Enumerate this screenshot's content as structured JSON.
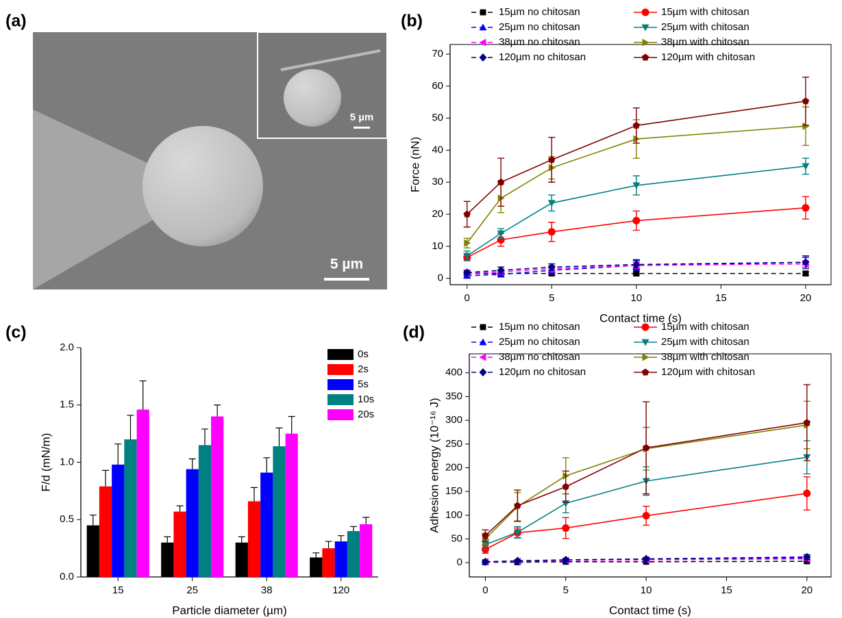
{
  "chart_data": [
    {
      "type": "image",
      "panel_label": "(a)",
      "scale_bar_label": "5 µm",
      "inset_scale_bar_label": "5 µm"
    },
    {
      "type": "line",
      "panel_label": "(b)",
      "x_label": "Contact time (s)",
      "y_label": "Force (nN)",
      "x": [
        0,
        2,
        5,
        10,
        20
      ],
      "xlim": [
        -1,
        21.5
      ],
      "xticks": [
        0,
        5,
        10,
        15,
        20
      ],
      "ylim": [
        -2,
        73
      ],
      "yticks": [
        0,
        10,
        20,
        30,
        40,
        50,
        60,
        70
      ],
      "legend": "top",
      "series": [
        {
          "name": "15µm no chitosan",
          "color": "#000000",
          "marker": "square",
          "linestyle": "dashed",
          "values": [
            1.5,
            1.5,
            1.5,
            1.5,
            1.5
          ],
          "errors": [
            0.5,
            0.5,
            0.5,
            0.5,
            0.5
          ]
        },
        {
          "name": "25µm no chitosan",
          "color": "#0000ff",
          "marker": "triangle-up",
          "linestyle": "dashed",
          "values": [
            0.8,
            1.2,
            2.5,
            4,
            5
          ],
          "errors": [
            0.5,
            0.7,
            1,
            1.5,
            1.5
          ]
        },
        {
          "name": "38µm no chitosan",
          "color": "#ff00ff",
          "marker": "triangle-left",
          "linestyle": "dashed",
          "values": [
            1.5,
            2,
            3,
            4,
            4.5
          ],
          "errors": [
            0.5,
            0.7,
            1,
            1,
            1
          ]
        },
        {
          "name": "120µm no chitosan",
          "color": "#000080",
          "marker": "diamond",
          "linestyle": "dashed",
          "values": [
            1.8,
            2.5,
            3.5,
            4.3,
            5
          ],
          "errors": [
            0.7,
            1,
            1,
            1.5,
            2
          ]
        },
        {
          "name": "15µm with chitosan",
          "color": "#ff0000",
          "marker": "circle",
          "linestyle": "solid",
          "values": [
            6.5,
            12,
            14.5,
            18,
            22
          ],
          "errors": [
            1,
            2,
            3,
            3,
            3.5
          ]
        },
        {
          "name": "25µm with chitosan",
          "color": "#008080",
          "marker": "triangle-down",
          "linestyle": "solid",
          "values": [
            7,
            14,
            23.5,
            29,
            35
          ],
          "errors": [
            1.5,
            1.5,
            2.5,
            3,
            2.5
          ]
        },
        {
          "name": "38µm with chitosan",
          "color": "#808000",
          "marker": "triangle-right",
          "linestyle": "solid",
          "values": [
            11,
            25,
            34.5,
            43.5,
            47.5
          ],
          "errors": [
            1.5,
            4.5,
            3.5,
            6,
            6
          ]
        },
        {
          "name": "120µm with chitosan",
          "color": "#800000",
          "marker": "pentagon",
          "linestyle": "solid",
          "values": [
            20,
            30,
            37,
            47.7,
            55.3
          ],
          "errors": [
            4,
            7.5,
            7,
            5.5,
            7.5
          ]
        }
      ]
    },
    {
      "type": "bar",
      "panel_label": "(c)",
      "x_label": "Particle diameter (µm)",
      "y_label": "F/d (mN/m)",
      "categories": [
        "15",
        "25",
        "38",
        "120"
      ],
      "ylim": [
        0,
        2.0
      ],
      "yticks": [
        {
          "value": 0,
          "label": "0.0"
        },
        {
          "value": 0.5,
          "label": "0.5"
        },
        {
          "value": 1,
          "label": "1.0"
        },
        {
          "value": 1.5,
          "label": "1.5"
        },
        {
          "value": 2,
          "label": "2.0"
        }
      ],
      "legend": "upper right",
      "series": [
        {
          "name": "0s",
          "color": "#000000",
          "values": [
            0.45,
            0.3,
            0.3,
            0.17
          ],
          "errors": [
            0.09,
            0.05,
            0.05,
            0.04
          ]
        },
        {
          "name": "2s",
          "color": "#ff0000",
          "values": [
            0.79,
            0.57,
            0.66,
            0.25
          ],
          "errors": [
            0.14,
            0.05,
            0.12,
            0.06
          ]
        },
        {
          "name": "5s",
          "color": "#0000ff",
          "values": [
            0.98,
            0.94,
            0.91,
            0.31
          ],
          "errors": [
            0.18,
            0.09,
            0.13,
            0.05
          ]
        },
        {
          "name": "10s",
          "color": "#008080",
          "values": [
            1.2,
            1.15,
            1.14,
            0.4
          ],
          "errors": [
            0.21,
            0.14,
            0.16,
            0.04
          ]
        },
        {
          "name": "20s",
          "color": "#ff00ff",
          "values": [
            1.46,
            1.4,
            1.25,
            0.46
          ],
          "errors": [
            0.25,
            0.1,
            0.15,
            0.06
          ]
        }
      ]
    },
    {
      "type": "line",
      "panel_label": "(d)",
      "x_label": "Contact time (s)",
      "y_label": "Adhesion energy (10⁻¹⁶ J)",
      "x": [
        0,
        2,
        5,
        10,
        20
      ],
      "xlim": [
        -1,
        21.5
      ],
      "xticks": [
        0,
        5,
        10,
        15,
        20
      ],
      "ylim": [
        -30,
        440
      ],
      "yticks": [
        0,
        50,
        100,
        150,
        200,
        250,
        300,
        350,
        400
      ],
      "legend": "top",
      "series": [
        {
          "name": "15µm no chitosan",
          "color": "#000000",
          "marker": "square",
          "linestyle": "dashed",
          "values": [
            1,
            1,
            2,
            2,
            3
          ],
          "errors": [
            1,
            1,
            1,
            1,
            2
          ]
        },
        {
          "name": "25µm no chitosan",
          "color": "#0000ff",
          "marker": "triangle-up",
          "linestyle": "dashed",
          "values": [
            2,
            3,
            5,
            7,
            10
          ],
          "errors": [
            1,
            2,
            2,
            3,
            4
          ]
        },
        {
          "name": "38µm no chitosan",
          "color": "#ff00ff",
          "marker": "triangle-left",
          "linestyle": "dashed",
          "values": [
            2,
            3,
            5,
            6,
            8
          ],
          "errors": [
            1,
            2,
            2,
            3,
            3
          ]
        },
        {
          "name": "120µm no chitosan",
          "color": "#000080",
          "marker": "diamond",
          "linestyle": "dashed",
          "values": [
            2,
            4,
            6,
            8,
            12
          ],
          "errors": [
            1,
            2,
            3,
            3,
            5
          ]
        },
        {
          "name": "15µm with chitosan",
          "color": "#ff0000",
          "marker": "circle",
          "linestyle": "solid",
          "values": [
            28,
            63,
            73,
            99,
            146
          ],
          "errors": [
            8,
            10,
            22,
            20,
            35
          ]
        },
        {
          "name": "25µm with chitosan",
          "color": "#008080",
          "marker": "triangle-down",
          "linestyle": "solid",
          "values": [
            38,
            64,
            125,
            172,
            222
          ],
          "errors": [
            10,
            12,
            20,
            30,
            35
          ]
        },
        {
          "name": "38µm with chitosan",
          "color": "#808000",
          "marker": "triangle-right",
          "linestyle": "solid",
          "values": [
            50,
            118,
            183,
            240,
            290
          ],
          "errors": [
            12,
            30,
            38,
            45,
            50
          ]
        },
        {
          "name": "120µm with chitosan",
          "color": "#800000",
          "marker": "pentagon",
          "linestyle": "solid",
          "values": [
            57,
            120,
            160,
            242,
            295
          ],
          "errors": [
            12,
            33,
            33,
            97,
            80
          ]
        }
      ]
    }
  ]
}
